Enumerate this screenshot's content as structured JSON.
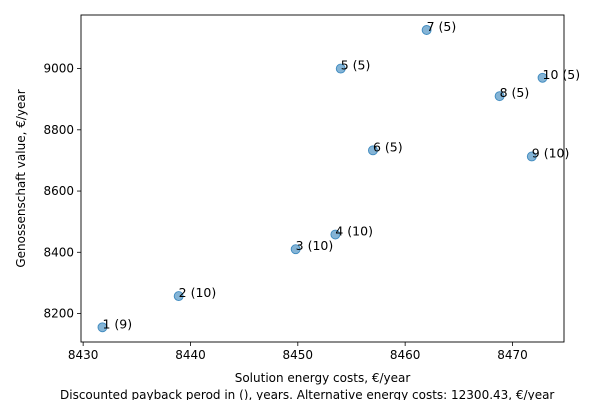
{
  "chart_data": {
    "type": "scatter",
    "xlabel": "Solution energy costs, €/year",
    "ylabel": "Genossenschaft value, €/year",
    "caption": "Discounted payback perod in (), years. Alternative energy costs: 12300.43, €/year",
    "xlim": [
      8429.8,
      8474.8
    ],
    "ylim": [
      8107,
      9175
    ],
    "xticks": [
      8430,
      8440,
      8450,
      8460,
      8470
    ],
    "yticks": [
      8200,
      8400,
      8600,
      8800,
      9000
    ],
    "point_color": "#1f77b4",
    "points": [
      {
        "x": 8431.8,
        "y": 8155,
        "label": "1 (9)"
      },
      {
        "x": 8438.9,
        "y": 8257,
        "label": "2 (10)"
      },
      {
        "x": 8449.8,
        "y": 8410,
        "label": "3 (10)"
      },
      {
        "x": 8453.5,
        "y": 8458,
        "label": "4 (10)"
      },
      {
        "x": 8454.0,
        "y": 9000,
        "label": "5 (5)"
      },
      {
        "x": 8457.0,
        "y": 8733,
        "label": "6 (5)"
      },
      {
        "x": 8462.0,
        "y": 9126,
        "label": "7 (5)"
      },
      {
        "x": 8468.8,
        "y": 8910,
        "label": "8 (5)"
      },
      {
        "x": 8471.8,
        "y": 8713,
        "label": "9 (10)"
      },
      {
        "x": 8472.8,
        "y": 8970,
        "label": "10 (5)"
      }
    ]
  }
}
